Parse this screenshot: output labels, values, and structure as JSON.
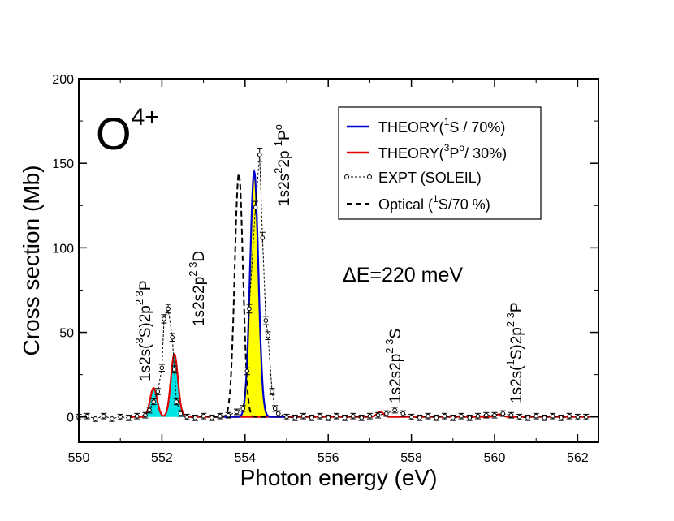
{
  "chart_data": {
    "type": "line",
    "title": "",
    "ion": {
      "base": "O",
      "charge": "4+"
    },
    "xlabel": "Photon energy (eV)",
    "ylabel": "Cross section (Mb)",
    "xlim": [
      550,
      562.5
    ],
    "ylim": [
      -15,
      200
    ],
    "xticks": [
      550,
      552,
      554,
      556,
      558,
      560,
      562
    ],
    "yticks": [
      0,
      50,
      100,
      150,
      200
    ],
    "grid": false,
    "legend_position": "top-right",
    "legend": [
      {
        "text": "THEORY(",
        "sup": "1",
        "rest": "S / 70%)",
        "style": "blue-line"
      },
      {
        "text": "THEORY(",
        "sup": "3",
        "mid": "P",
        "sup2": "o",
        "rest": "/ 30%)",
        "style": "red-line"
      },
      {
        "text": "EXPT (SOLEIL)",
        "style": "circle-dashed"
      },
      {
        "text": "Optical (",
        "sup": "1",
        "rest": "S/70 %)",
        "style": "black-dashed"
      }
    ],
    "resolution_label": "ΔE=220 meV",
    "peak_labels": [
      {
        "base": "1s2s(",
        "sup1": "3",
        "mid": "S)2p",
        "sup2": "2 3",
        "end": "P",
        "energy": 551.8
      },
      {
        "base": "1s2s2p",
        "sup2": "2 3",
        "end": "D",
        "energy": 552.95
      },
      {
        "base": "1s2s",
        "sup1": "2",
        "mid": "2p ",
        "sup2": "1",
        "end": "P",
        "sup3": "o",
        "energy": 554.55
      },
      {
        "base": "1s2s2p",
        "sup2": "2 3",
        "end": "S",
        "energy": 557.6
      },
      {
        "base": "1s2s(",
        "sup1": "1",
        "mid": "S)2p",
        "sup2": "2 3",
        "end": "P",
        "energy": 560.5
      }
    ],
    "colors": {
      "theory_1S": "#0000cc",
      "theory_3P": "#e00000",
      "fill_1S": "#ffff00",
      "fill_3P": "#00e5e5",
      "optical": "#000000",
      "expt": "#000000"
    },
    "series": [
      {
        "name": "THEORY(1S / 70%)",
        "peaks": [
          {
            "x": 554.22,
            "height": 145,
            "width": 0.1
          }
        ]
      },
      {
        "name": "THEORY(3Po/ 30%)",
        "peaks": [
          {
            "x": 551.8,
            "height": 17,
            "width": 0.085
          },
          {
            "x": 552.3,
            "height": 37,
            "width": 0.085
          },
          {
            "x": 557.25,
            "height": 3,
            "width": 0.08
          },
          {
            "x": 560.1,
            "height": 1.5,
            "width": 0.09
          }
        ]
      },
      {
        "name": "Optical (1S/70 %)",
        "peaks": [
          {
            "x": 553.85,
            "height": 144,
            "width": 0.1
          }
        ]
      },
      {
        "name": "EXPT (SOLEIL)",
        "points": [
          [
            550.0,
            0
          ],
          [
            550.2,
            0.5
          ],
          [
            550.4,
            -1
          ],
          [
            550.6,
            0.5
          ],
          [
            550.8,
            -1
          ],
          [
            551.0,
            0
          ],
          [
            551.2,
            -0.5
          ],
          [
            551.4,
            0.5
          ],
          [
            551.6,
            1
          ],
          [
            551.7,
            4
          ],
          [
            551.8,
            9
          ],
          [
            551.9,
            15
          ],
          [
            552.0,
            29
          ],
          [
            552.05,
            58
          ],
          [
            552.15,
            64
          ],
          [
            552.25,
            47
          ],
          [
            552.3,
            28
          ],
          [
            552.35,
            9
          ],
          [
            552.45,
            2
          ],
          [
            552.6,
            0
          ],
          [
            552.8,
            -0.5
          ],
          [
            553.0,
            0.5
          ],
          [
            553.2,
            -0.5
          ],
          [
            553.4,
            0.5
          ],
          [
            553.6,
            1
          ],
          [
            553.8,
            3
          ],
          [
            553.95,
            5
          ],
          [
            554.05,
            27
          ],
          [
            554.1,
            64
          ],
          [
            554.25,
            124
          ],
          [
            554.35,
            155
          ],
          [
            554.42,
            106
          ],
          [
            554.5,
            57
          ],
          [
            554.55,
            48
          ],
          [
            554.65,
            15
          ],
          [
            554.72,
            5
          ],
          [
            554.8,
            2
          ],
          [
            555.0,
            0
          ],
          [
            555.2,
            -0.5
          ],
          [
            555.4,
            0.5
          ],
          [
            555.6,
            -0.5
          ],
          [
            555.8,
            0.5
          ],
          [
            556.0,
            -0.5
          ],
          [
            556.2,
            0.5
          ],
          [
            556.4,
            -0.5
          ],
          [
            556.6,
            0.5
          ],
          [
            556.8,
            -0.5
          ],
          [
            557.0,
            0.5
          ],
          [
            557.2,
            1
          ],
          [
            557.4,
            2
          ],
          [
            557.6,
            4
          ],
          [
            557.8,
            2
          ],
          [
            558.0,
            0
          ],
          [
            558.2,
            -0.5
          ],
          [
            558.4,
            0.5
          ],
          [
            558.6,
            -0.5
          ],
          [
            558.8,
            0.5
          ],
          [
            559.0,
            -0.5
          ],
          [
            559.2,
            0.5
          ],
          [
            559.4,
            -0.5
          ],
          [
            559.6,
            0.5
          ],
          [
            559.8,
            1
          ],
          [
            560.0,
            1
          ],
          [
            560.2,
            2
          ],
          [
            560.4,
            1
          ],
          [
            560.6,
            0
          ],
          [
            560.8,
            -0.5
          ],
          [
            561.0,
            0.5
          ],
          [
            561.2,
            -0.5
          ],
          [
            561.4,
            0.5
          ],
          [
            561.6,
            -0.5
          ],
          [
            561.8,
            0.5
          ],
          [
            562.0,
            0
          ],
          [
            562.2,
            0
          ]
        ]
      }
    ]
  }
}
